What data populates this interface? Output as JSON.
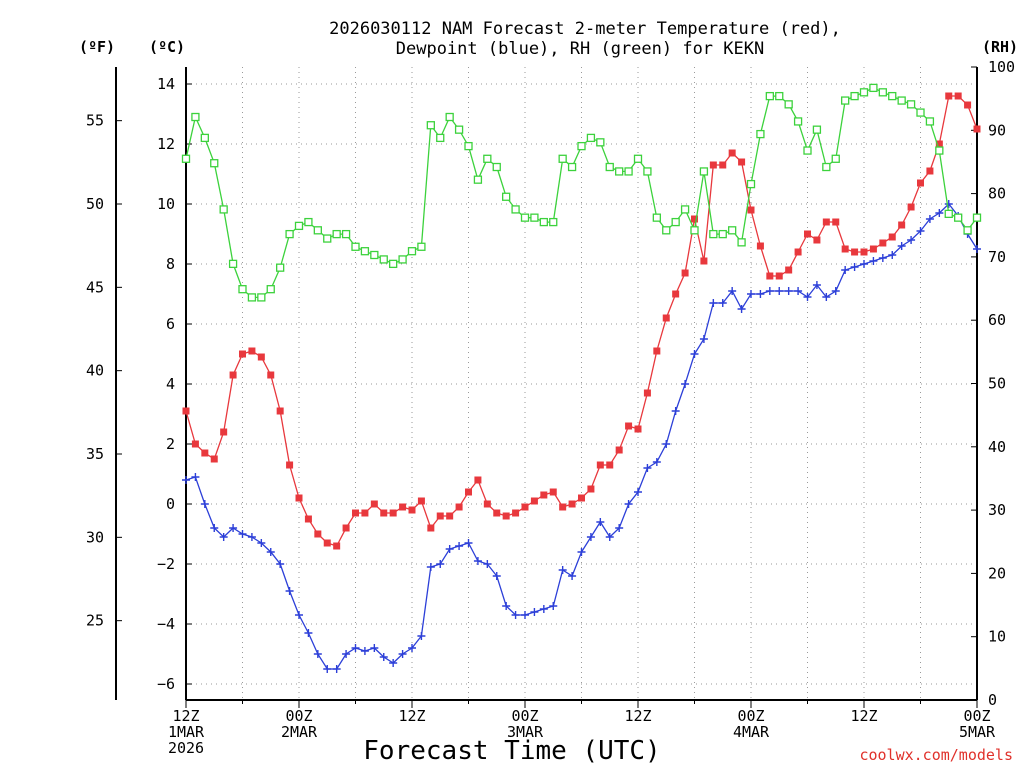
{
  "chart_data": {
    "type": "line",
    "title": [
      "2026030112 NAM Forecast 2-meter Temperature (red),",
      "Dewpoint (blue), RH (green) for KEKN"
    ],
    "xlabel": "Forecast Time (UTC)",
    "left_unit_f": "(ºF)",
    "left_unit_c": "(ºC)",
    "right_unit": "(RH)",
    "credit": "coolwx.com/models",
    "x_ticks": [
      {
        "h": 0,
        "lines": [
          "12Z",
          "1MAR",
          "2026"
        ]
      },
      {
        "h": 12,
        "lines": [
          "00Z",
          "2MAR"
        ]
      },
      {
        "h": 24,
        "lines": [
          "12Z"
        ]
      },
      {
        "h": 36,
        "lines": [
          "00Z",
          "3MAR"
        ]
      },
      {
        "h": 48,
        "lines": [
          "12Z"
        ]
      },
      {
        "h": 60,
        "lines": [
          "00Z",
          "4MAR"
        ]
      },
      {
        "h": 72,
        "lines": [
          "12Z"
        ]
      },
      {
        "h": 84,
        "lines": [
          "00Z",
          "5MAR"
        ]
      }
    ],
    "y_c_ticks": [
      "14",
      "12",
      "10",
      "8",
      "6",
      "4",
      "2",
      "0",
      "−2",
      "−4",
      "−6"
    ],
    "y_f_ticks": [
      "55",
      "50",
      "45",
      "40",
      "35",
      "30",
      "25"
    ],
    "y_rh_ticks": [
      "100",
      "90",
      "80",
      "70",
      "60",
      "50",
      "40",
      "30",
      "20",
      "10",
      "0"
    ],
    "xlim_hours": [
      0,
      84
    ],
    "ylim_c": [
      -6.5,
      14.5
    ],
    "ylim_rh": [
      0,
      100
    ],
    "grid": true,
    "series": [
      {
        "name": "Temperature (red)",
        "axis": "c",
        "color": "#e8383d",
        "marker": "filled-square",
        "x": [
          0,
          1,
          2,
          3,
          4,
          5,
          6,
          7,
          8,
          9,
          10,
          11,
          12,
          13,
          14,
          15,
          16,
          17,
          18,
          19,
          20,
          21,
          22,
          23,
          24,
          25,
          26,
          27,
          28,
          29,
          30,
          31,
          32,
          33,
          34,
          35,
          36,
          37,
          38,
          39,
          40,
          41,
          42,
          43,
          44,
          45,
          46,
          47,
          48,
          49,
          50,
          51,
          52,
          53,
          54,
          55,
          56,
          57,
          58,
          59,
          60,
          61,
          62,
          63,
          64,
          65,
          66,
          67,
          68,
          69,
          70,
          71,
          72,
          73,
          74,
          75,
          76,
          77,
          78,
          79,
          80,
          81,
          82,
          83,
          84
        ],
        "y": [
          3.1,
          2.0,
          1.7,
          1.5,
          2.4,
          4.3,
          5.0,
          5.1,
          4.9,
          4.3,
          3.1,
          1.3,
          0.2,
          -0.5,
          -1.0,
          -1.3,
          -1.4,
          -0.8,
          -0.3,
          -0.3,
          0.0,
          -0.3,
          -0.3,
          -0.1,
          -0.2,
          0.1,
          -0.8,
          -0.4,
          -0.4,
          -0.1,
          0.4,
          0.8,
          0.0,
          -0.3,
          -0.4,
          -0.3,
          -0.1,
          0.1,
          0.3,
          0.4,
          -0.1,
          0.0,
          0.2,
          0.5,
          1.3,
          1.3,
          1.8,
          2.6,
          2.5,
          3.7,
          5.1,
          6.2,
          7.0,
          7.7,
          9.5,
          8.1,
          11.3,
          11.3,
          11.7,
          11.4,
          9.8,
          8.6,
          7.6,
          7.6,
          7.8,
          8.4,
          9.0,
          8.8,
          9.4,
          9.4,
          8.5,
          8.4,
          8.4,
          8.5,
          8.7,
          8.9,
          9.3,
          9.9,
          10.7,
          11.1,
          12.0,
          13.6,
          13.6,
          13.3,
          12.5
        ]
      },
      {
        "name": "Dewpoint (blue)",
        "axis": "c",
        "color": "#2c3fd8",
        "marker": "plus",
        "x": [
          0,
          1,
          2,
          3,
          4,
          5,
          6,
          7,
          8,
          9,
          10,
          11,
          12,
          13,
          14,
          15,
          16,
          17,
          18,
          19,
          20,
          21,
          22,
          23,
          24,
          25,
          26,
          27,
          28,
          29,
          30,
          31,
          32,
          33,
          34,
          35,
          36,
          37,
          38,
          39,
          40,
          41,
          42,
          43,
          44,
          45,
          46,
          47,
          48,
          49,
          50,
          51,
          52,
          53,
          54,
          55,
          56,
          57,
          58,
          59,
          60,
          61,
          62,
          63,
          64,
          65,
          66,
          67,
          68,
          69,
          70,
          71,
          72,
          73,
          74,
          75,
          76,
          77,
          78,
          79,
          80,
          81,
          82,
          83,
          84
        ],
        "y": [
          0.8,
          0.9,
          0.0,
          -0.8,
          -1.1,
          -0.8,
          -1.0,
          -1.1,
          -1.3,
          -1.6,
          -2.0,
          -2.9,
          -3.7,
          -4.3,
          -5.0,
          -5.5,
          -5.5,
          -5.0,
          -4.8,
          -4.9,
          -4.8,
          -5.1,
          -5.3,
          -5.0,
          -4.8,
          -4.4,
          -2.1,
          -2.0,
          -1.5,
          -1.4,
          -1.3,
          -1.9,
          -2.0,
          -2.4,
          -3.4,
          -3.7,
          -3.7,
          -3.6,
          -3.5,
          -3.4,
          -2.2,
          -2.4,
          -1.6,
          -1.1,
          -0.6,
          -1.1,
          -0.8,
          0.0,
          0.4,
          1.2,
          1.4,
          2.0,
          3.1,
          4.0,
          5.0,
          5.5,
          6.7,
          6.7,
          7.1,
          6.5,
          7.0,
          7.0,
          7.1,
          7.1,
          7.1,
          7.1,
          6.9,
          7.3,
          6.9,
          7.1,
          7.8,
          7.9,
          8.0,
          8.1,
          8.2,
          8.3,
          8.6,
          8.8,
          9.1,
          9.5,
          9.7,
          10.0,
          9.6,
          9.0,
          8.5
        ]
      },
      {
        "name": "RH (green)",
        "axis": "rh",
        "color": "#3cd23c",
        "marker": "open-square",
        "x": [
          0,
          1,
          2,
          3,
          4,
          5,
          6,
          7,
          8,
          9,
          10,
          11,
          12,
          13,
          14,
          15,
          16,
          17,
          18,
          19,
          20,
          21,
          22,
          23,
          24,
          25,
          26,
          27,
          28,
          29,
          30,
          31,
          32,
          33,
          34,
          35,
          36,
          37,
          38,
          39,
          40,
          41,
          42,
          43,
          44,
          45,
          46,
          47,
          48,
          49,
          50,
          51,
          52,
          53,
          54,
          55,
          56,
          57,
          58,
          59,
          60,
          61,
          62,
          63,
          64,
          65,
          66,
          67,
          68,
          69,
          70,
          71,
          72,
          73,
          74,
          75,
          76,
          77,
          78,
          79,
          80,
          81,
          82,
          83,
          84
        ],
        "y": [
          85.5,
          92.1,
          88.8,
          84.8,
          77.5,
          68.9,
          64.9,
          63.6,
          63.6,
          64.9,
          68.3,
          73.6,
          74.9,
          75.5,
          74.2,
          72.9,
          73.6,
          73.6,
          71.6,
          70.9,
          70.3,
          69.6,
          68.9,
          69.6,
          70.9,
          71.6,
          90.8,
          88.8,
          92.1,
          90.1,
          87.5,
          82.2,
          85.5,
          84.2,
          79.5,
          77.5,
          76.2,
          76.2,
          75.5,
          75.5,
          85.5,
          84.2,
          87.5,
          88.8,
          88.1,
          84.2,
          83.5,
          83.5,
          85.5,
          83.5,
          76.2,
          74.2,
          75.5,
          77.5,
          74.2,
          83.5,
          73.6,
          73.6,
          74.2,
          72.3,
          81.5,
          89.4,
          95.4,
          95.4,
          94.1,
          91.4,
          86.8,
          90.1,
          84.2,
          85.5,
          94.7,
          95.4,
          96.0,
          96.7,
          96.0,
          95.4,
          94.7,
          94.1,
          92.8,
          91.4,
          86.8,
          76.8,
          76.2,
          74.2,
          76.2
        ]
      }
    ]
  }
}
